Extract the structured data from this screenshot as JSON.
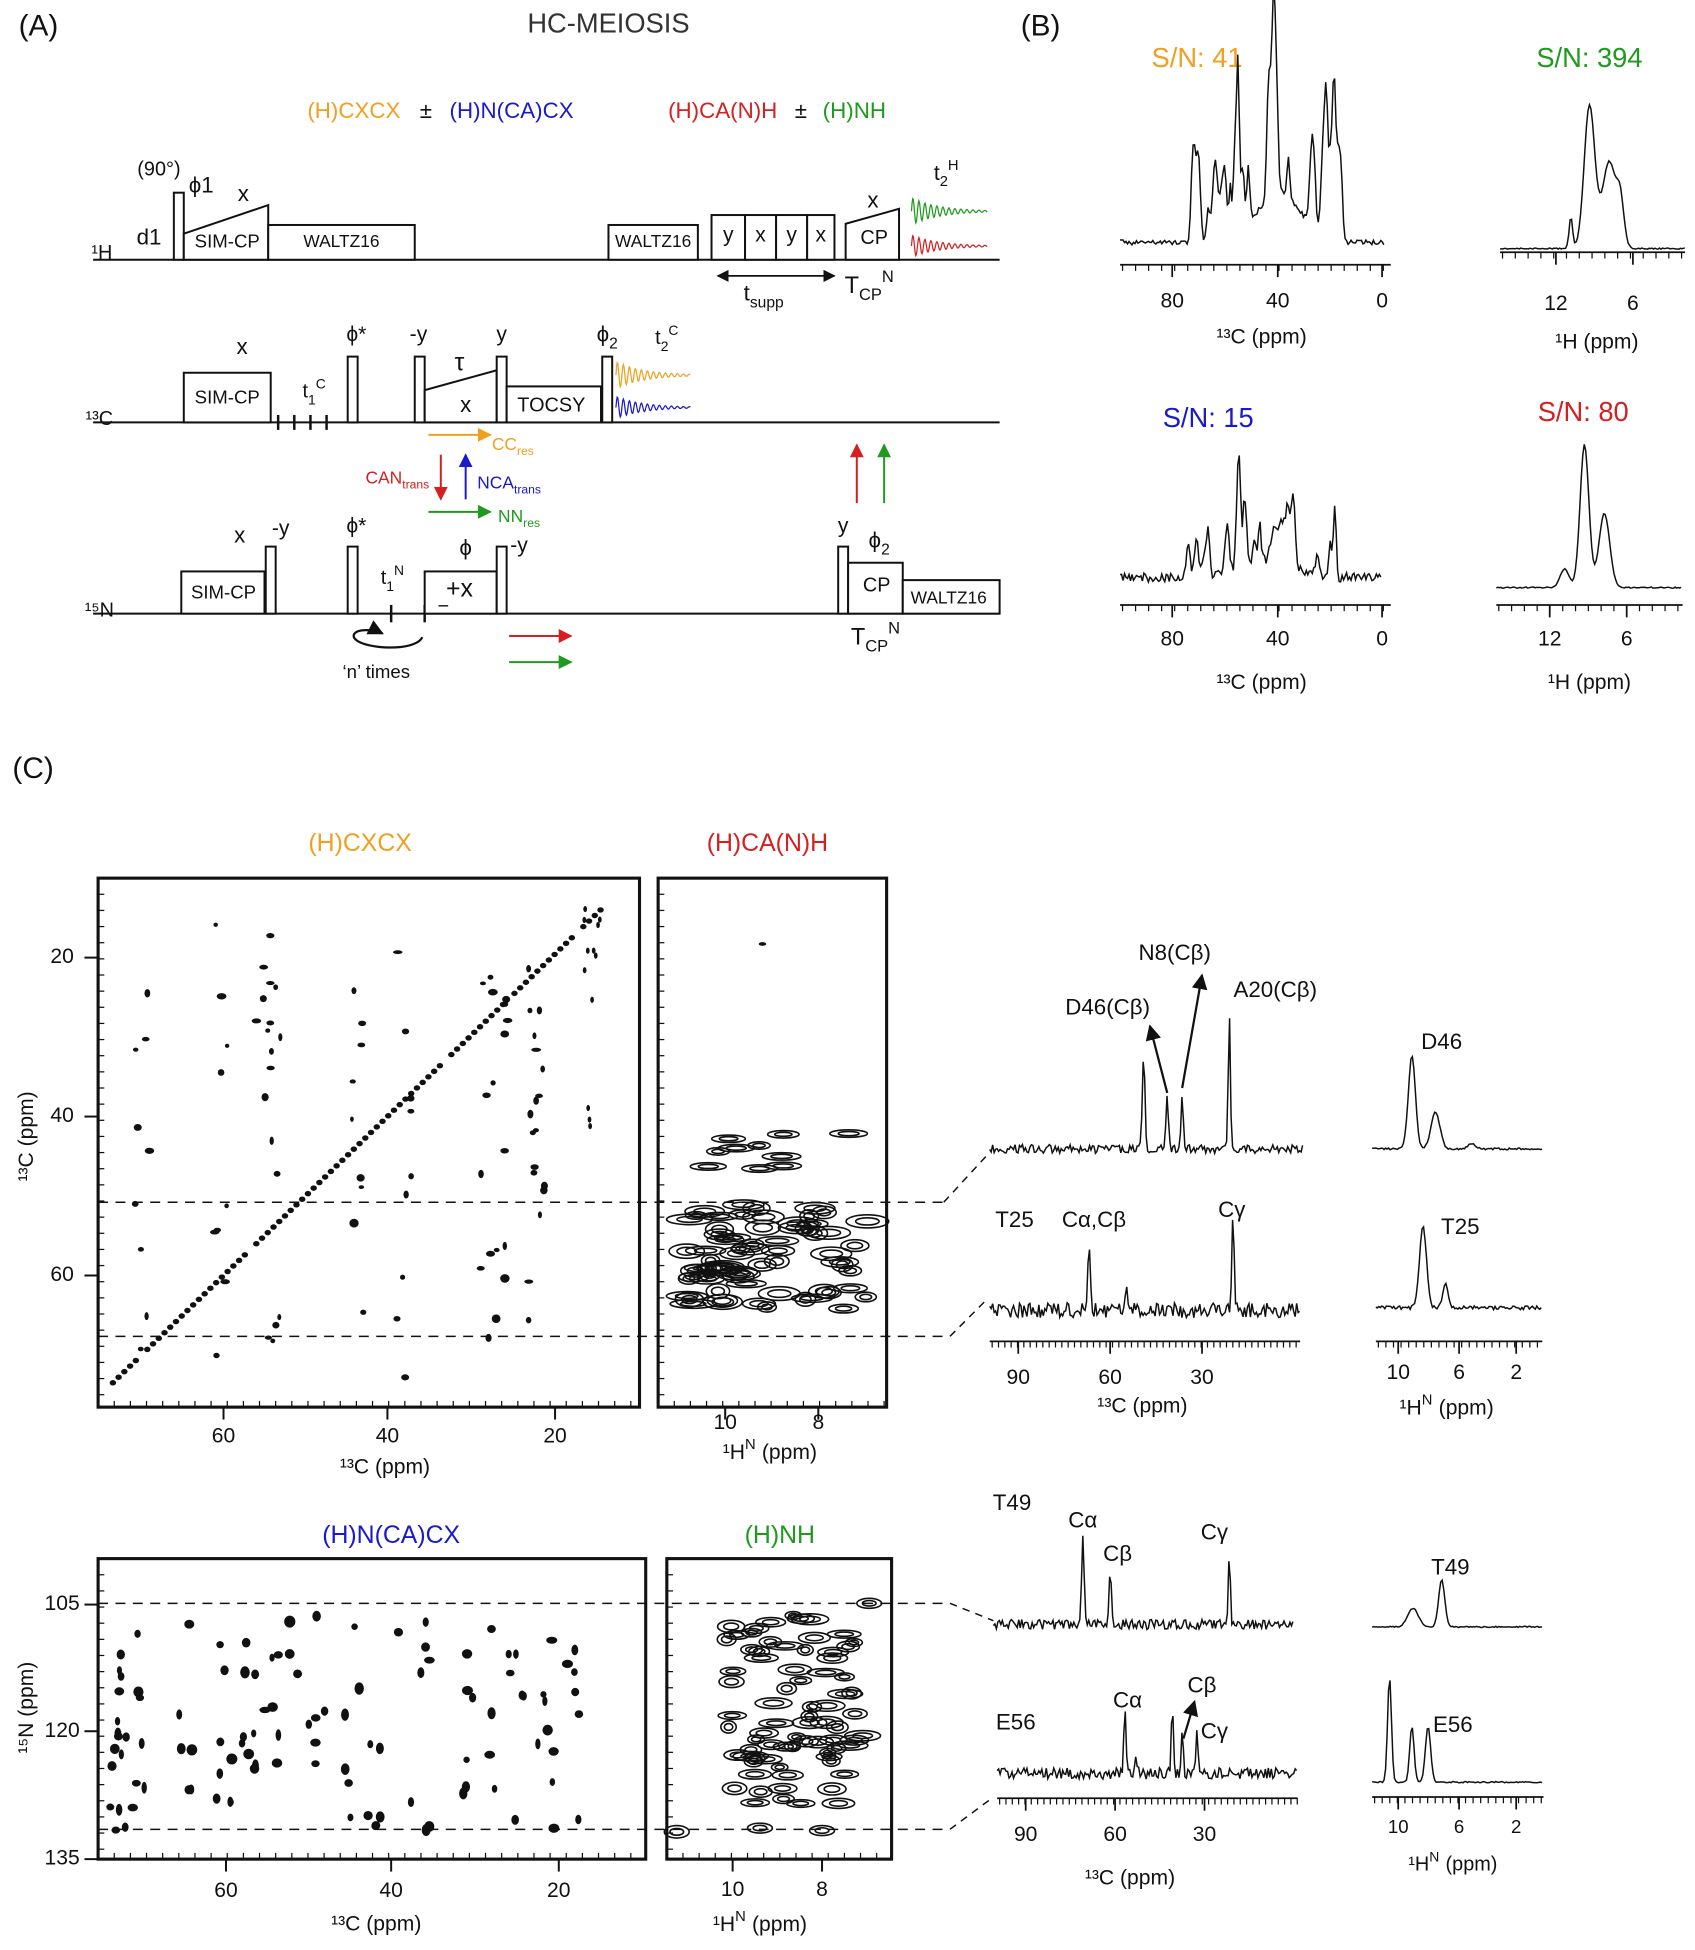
{
  "panel_a": {
    "label": "(A)",
    "title": "HC-MEIOSIS",
    "experiments": [
      "(H)CXCX",
      "±",
      "(H)N(CA)CX",
      "(H)CA(N)H",
      "±",
      "(H)NH"
    ],
    "h_channel": {
      "nucleus": "¹H",
      "flip_angle": "(90°)",
      "phase": "ϕ1",
      "cp_phase": "x",
      "delay": "d1",
      "cp": "SIM-CP",
      "decoupling": "WALTZ16",
      "supp_decoupling": "WALTZ16",
      "supp_pulses": [
        "y",
        "x",
        "y",
        "x"
      ],
      "t_supp": {
        "main": "t",
        "sub": "supp"
      },
      "cp2_phase": "x",
      "cp2": "CP",
      "acquisition": {
        "main": "t",
        "sup": "H",
        "sub": "2"
      },
      "t_cp": {
        "main": "T",
        "sup": "N",
        "sub": "CP"
      }
    },
    "c_channel": {
      "nucleus": "¹³C",
      "cp_phase": "x",
      "cp": "SIM-CP",
      "t1": {
        "main": "t",
        "sub": "1",
        "sup": "C"
      },
      "phase_star": "ϕ*",
      "minus_y": "-y",
      "tau": "τ",
      "tau_phase": "x",
      "y": "y",
      "tocsy": "TOCSY",
      "phase2": {
        "main": "ϕ",
        "sub": "2"
      },
      "acquisition": {
        "main": "t",
        "sub": "2",
        "sup": "C"
      }
    },
    "transfers": {
      "cc": {
        "main": "CC",
        "sub": "res"
      },
      "can": {
        "main": "CAN",
        "sub": "trans"
      },
      "nca": {
        "main": "NCA",
        "sub": "trans"
      },
      "nn": {
        "main": "NN",
        "sub": "res"
      }
    },
    "n_channel": {
      "nucleus": "¹⁵N",
      "cp_phase": "x",
      "minus_y": "-y",
      "cp": "SIM-CP",
      "phase_star": "ϕ*",
      "t1": {
        "main": "t",
        "sub": "1",
        "sup": "N"
      },
      "phase": "ϕ",
      "plus_x": "+x",
      "minus": "−",
      "minus_y2": "-y",
      "loop": "‘n’ times",
      "y": "y",
      "phase2": {
        "main": "ϕ",
        "sub": "2"
      },
      "cp2": "CP",
      "decoupling": "WALTZ16",
      "t_cp": {
        "main": "T",
        "sup": "N",
        "sub": "CP"
      }
    }
  },
  "panel_b": {
    "label": "(B)",
    "spectra": [
      {
        "title": "S/N: 41",
        "ticks": [
          "80",
          "40",
          "0"
        ],
        "axis": "¹³C (ppm)"
      },
      {
        "title": "S/N: 394",
        "ticks": [
          "12",
          "6"
        ],
        "axis": "¹H (ppm)"
      },
      {
        "title": "S/N: 15",
        "ticks": [
          "80",
          "40",
          "0"
        ],
        "axis": "¹³C (ppm)"
      },
      {
        "title": "S/N: 80",
        "ticks": [
          "12",
          "6"
        ],
        "axis": "¹H (ppm)"
      }
    ]
  },
  "panel_c": {
    "label": "(C)",
    "top": {
      "cc_title": "(H)CXCX",
      "hn_title": "(H)CA(N)H",
      "cc_yticks": [
        "20",
        "40",
        "60"
      ],
      "cc_xticks": [
        "60",
        "40",
        "20"
      ],
      "cc_xlabel": "¹³C (ppm)",
      "cc_ylabel": "¹³C (ppm)",
      "hn_xticks": [
        "10",
        "8"
      ],
      "hn_xlabel": {
        "main": "¹H",
        "sup": "N",
        "unit": "(ppm)"
      },
      "slices": {
        "upper": {
          "annotations": [
            "N8(Cβ)",
            "D46(Cβ)",
            "A20(Cβ)"
          ],
          "residue": "D46"
        },
        "lower": {
          "annotations": [
            "T25",
            "Cα,Cβ",
            "Cγ"
          ],
          "residue": "T25"
        },
        "c_ticks": [
          "90",
          "60",
          "30"
        ],
        "c_label": "¹³C (ppm)",
        "h_ticks": [
          "10",
          "6",
          "2"
        ],
        "h_label": {
          "main": "¹H",
          "sup": "N",
          "unit": "(ppm)"
        }
      }
    },
    "bottom": {
      "nc_title": "(H)N(CA)CX",
      "hn_title": "(H)NH",
      "nc_yticks": [
        "105",
        "120",
        "135"
      ],
      "nc_xticks": [
        "60",
        "40",
        "20"
      ],
      "nc_xlabel": "¹³C (ppm)",
      "nc_ylabel": "¹⁵N (ppm)",
      "hn_xticks": [
        "10",
        "8"
      ],
      "hn_xlabel": {
        "main": "¹H",
        "sup": "N",
        "unit": "(ppm)"
      },
      "slices": {
        "upper": {
          "annotations": [
            "T49",
            "Cα",
            "Cβ",
            "Cγ"
          ],
          "residue": "T49"
        },
        "lower": {
          "annotations": [
            "E56",
            "Cα",
            "Cβ",
            "Cγ"
          ],
          "residue": "E56"
        },
        "c_ticks": [
          "90",
          "60",
          "30"
        ],
        "c_label": "¹³C (ppm)",
        "h_ticks": [
          "10",
          "6",
          "2"
        ],
        "h_label": {
          "main": "¹H",
          "sup": "N",
          "unit": "(ppm)"
        }
      }
    }
  }
}
